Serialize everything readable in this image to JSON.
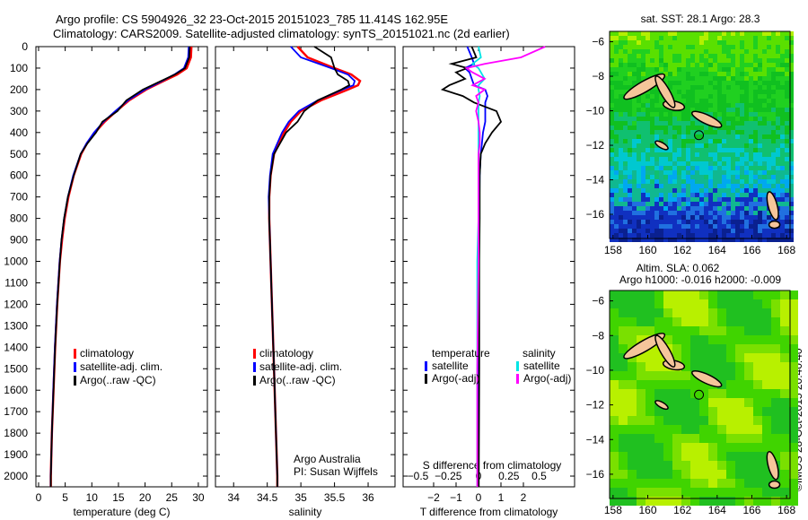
{
  "header": {
    "line1": "Argo profile: CS 5904926_32 23-Oct-2015 20151023_785 11.414S 162.95E",
    "line2": "Climatology: CARS2009. Satellite-adjusted climatology: synTS_20151021.nc (2d earlier)"
  },
  "credit": "©IMOS 28-Oct-2015 20:40:40",
  "colors": {
    "climatology": "#ff0000",
    "satellite": "#0000ff",
    "argo": "#000000",
    "sal_sat": "#00e5e5",
    "sal_argo": "#ff00ff",
    "land": "#f5c59a"
  },
  "depth_ticks": [
    0,
    100,
    200,
    300,
    400,
    500,
    600,
    700,
    800,
    900,
    1000,
    1100,
    1200,
    1300,
    1400,
    1500,
    1600,
    1700,
    1800,
    1900,
    2000
  ],
  "chart_data": [
    {
      "type": "line",
      "name": "temperature",
      "xlabel": "temperature (deg C)",
      "xlim": [
        -0.5,
        31.7
      ],
      "ylim": [
        0,
        2050
      ],
      "xticks": [
        0,
        5,
        10,
        15,
        20,
        25,
        30
      ],
      "legend": [
        "climatology",
        "satellite-adj. clim.",
        "Argo(..raw -QC)"
      ],
      "depth": [
        0,
        50,
        100,
        130,
        160,
        200,
        250,
        300,
        350,
        400,
        450,
        500,
        600,
        700,
        800,
        900,
        1000,
        1200,
        1400,
        1600,
        1800,
        2000,
        2050
      ],
      "series": [
        {
          "name": "climatology",
          "values": [
            28.7,
            28.6,
            27.8,
            26,
            23.5,
            20.2,
            17,
            14.6,
            12.4,
            10.6,
            9.1,
            8,
            6.6,
            5.6,
            4.9,
            4.4,
            4,
            3.5,
            3.1,
            2.8,
            2.5,
            2.3,
            2.3
          ]
        },
        {
          "name": "satellite",
          "values": [
            28.2,
            28.1,
            27.3,
            25.5,
            23.2,
            20,
            16.8,
            14.4,
            12.2,
            10.4,
            9,
            7.9,
            6.5,
            5.5,
            4.8,
            4.3,
            3.95,
            3.45,
            3.05,
            2.75,
            2.5,
            2.3,
            2.3
          ]
        },
        {
          "name": "argo",
          "values": [
            28.4,
            28.3,
            27.5,
            25.6,
            23,
            19.6,
            16.5,
            14.8,
            12,
            10.8,
            9.2,
            7.9,
            6.6,
            5.5,
            4.8,
            4.3,
            4,
            3.5,
            3.1,
            2.8,
            2.5,
            2.3,
            2.3
          ]
        }
      ]
    },
    {
      "type": "line",
      "name": "salinity",
      "xlabel": "salinity",
      "xlim": [
        33.73,
        36.4
      ],
      "ylim": [
        0,
        2050
      ],
      "xticks": [
        34,
        34.5,
        35,
        35.5,
        36
      ],
      "legend": [
        "climatology",
        "satellite-adj. clim.",
        "Argo(..raw -QC)"
      ],
      "note": [
        "Argo Australia",
        "PI: Susan Wijffels"
      ],
      "depth": [
        0,
        50,
        100,
        130,
        160,
        180,
        200,
        250,
        300,
        350,
        400,
        500,
        600,
        700,
        800,
        1000,
        1200,
        1500,
        1800,
        2000,
        2050
      ],
      "series": [
        {
          "name": "climatology",
          "values": [
            34.95,
            35.1,
            35.5,
            35.75,
            35.88,
            35.85,
            35.7,
            35.3,
            35.0,
            34.85,
            34.75,
            34.6,
            34.55,
            34.53,
            34.53,
            34.55,
            34.57,
            34.6,
            34.63,
            34.65,
            34.65
          ]
        },
        {
          "name": "satellite",
          "values": [
            34.85,
            35.0,
            35.45,
            35.7,
            35.8,
            35.78,
            35.62,
            35.25,
            34.97,
            34.82,
            34.72,
            34.58,
            34.54,
            34.52,
            34.53,
            34.55,
            34.57,
            34.6,
            34.63,
            34.65,
            34.65
          ]
        },
        {
          "name": "argo",
          "values": [
            35.2,
            35.45,
            35.5,
            35.55,
            35.7,
            35.72,
            35.6,
            35.25,
            35.05,
            34.95,
            34.78,
            34.6,
            34.55,
            34.53,
            34.53,
            34.55,
            34.57,
            34.6,
            34.63,
            34.65,
            34.65
          ]
        }
      ]
    },
    {
      "type": "line",
      "name": "differences",
      "xlabel": "T difference from climatology",
      "x2label": "S difference from climatology",
      "xlim": [
        -3.36,
        4.28
      ],
      "x2lim": [
        -0.5,
        0.5
      ],
      "ylim": [
        0,
        2050
      ],
      "xticks": [
        -2,
        -1,
        0,
        1,
        2
      ],
      "x2ticks": [
        -0.5,
        -0.25,
        0,
        0.25,
        0.5
      ],
      "legend_t": [
        "temperature",
        "satellite",
        "Argo(-adj)"
      ],
      "legend_s": [
        "salinity",
        "satellite",
        "Argo(-adj)"
      ],
      "depth": [
        0,
        50,
        80,
        100,
        120,
        150,
        180,
        200,
        230,
        260,
        300,
        350,
        400,
        450,
        500,
        600,
        800,
        1000,
        1500,
        2000,
        2050
      ],
      "series": [
        {
          "name": "T satellite",
          "axis": "T",
          "values": [
            -0.5,
            -0.3,
            -0.2,
            -0.6,
            -0.4,
            -0.3,
            -0.2,
            0.3,
            0.4,
            0.3,
            0.3,
            0.3,
            0.2,
            0.15,
            0.1,
            0.05,
            0.03,
            0.02,
            0.01,
            0,
            0
          ]
        },
        {
          "name": "T Argo(-adj)",
          "axis": "T",
          "values": [
            -0.3,
            -0.1,
            -1.2,
            -0.5,
            -1.0,
            -0.6,
            -1.3,
            -1.6,
            -0.7,
            -0.2,
            0.8,
            1.0,
            0.6,
            0.3,
            0.1,
            0.05,
            0.05,
            0.03,
            0.03,
            0.01,
            0.01
          ]
        },
        {
          "name": "S satellite",
          "axis": "S",
          "values": [
            0.0,
            0.02,
            -0.05,
            0.0,
            0.02,
            0.05,
            0.0,
            0.0,
            0.01,
            0.0,
            0.0,
            0.0,
            0.0,
            0.0,
            0.0,
            0.0,
            0.0,
            -0.01,
            -0.01,
            -0.01,
            -0.01
          ]
        },
        {
          "name": "S Argo(-adj)",
          "axis": "S",
          "values": [
            0.55,
            0.35,
            0.05,
            -0.1,
            -0.05,
            0.05,
            -0.05,
            0.05,
            -0.02,
            0.0,
            -0.02,
            0.0,
            0.01,
            0.01,
            0.0,
            0.0,
            0.0,
            0.0,
            -0.01,
            -0.01,
            -0.01
          ]
        }
      ]
    },
    {
      "type": "heatmap",
      "name": "sst-map",
      "title": "sat. SST: 28.1  Argo: 28.3",
      "xlim": [
        157.8,
        168.2
      ],
      "ylim": [
        -17.4,
        -5.4
      ],
      "xticks": [
        158,
        160,
        162,
        164,
        166,
        168
      ],
      "yticks": [
        -6,
        -8,
        -10,
        -12,
        -14,
        -16
      ],
      "marker": [
        162.95,
        -11.414
      ]
    },
    {
      "type": "heatmap",
      "name": "sla-map",
      "title": "Altim. SLA: 0.062",
      "subtitle": "Argo h1000: -0.016  h2000: -0.009",
      "xlim": [
        157.8,
        168.2
      ],
      "ylim": [
        -17.4,
        -5.4
      ],
      "xticks": [
        158,
        160,
        162,
        164,
        166,
        168
      ],
      "yticks": [
        -6,
        -8,
        -10,
        -12,
        -14,
        -16
      ],
      "marker": [
        162.95,
        -11.414
      ]
    }
  ]
}
